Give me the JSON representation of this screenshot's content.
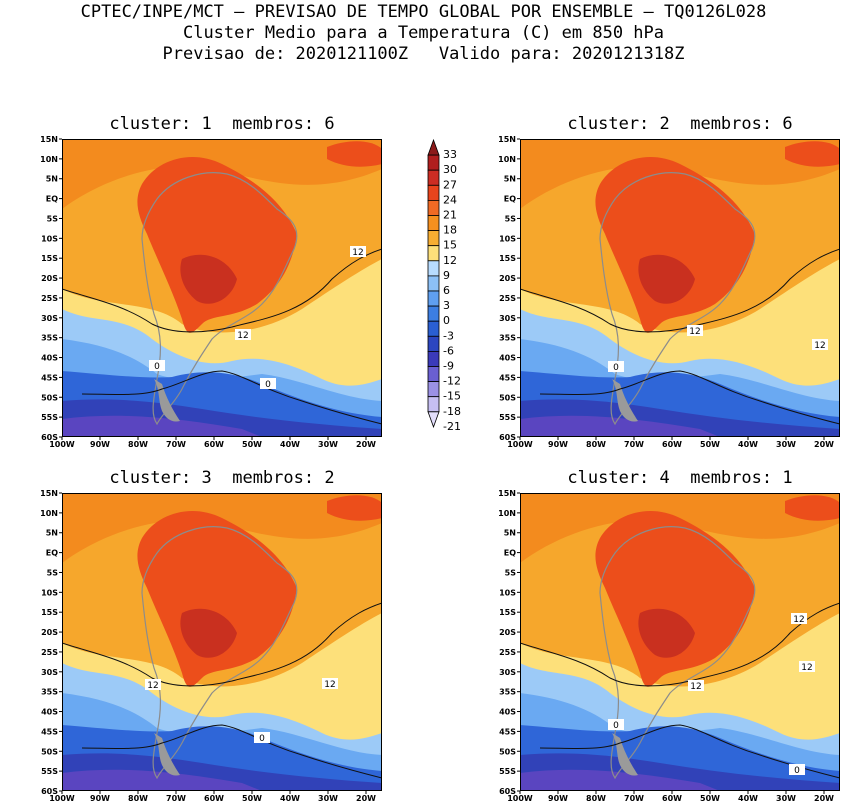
{
  "header": {
    "line1": "CPTEC/INPE/MCT – PREVISAO DE TEMPO GLOBAL POR ENSEMBLE – TQ0126L028",
    "line2": "Cluster Medio para a Temperatura (C) em 850 hPa",
    "line3": "Previsao de: 2020121100Z   Valido para: 2020121318Z"
  },
  "panels": [
    {
      "title": "cluster: 1  membros: 6",
      "contours": [
        "12",
        "12",
        "0",
        "0"
      ]
    },
    {
      "title": "cluster: 2  membros: 6",
      "contours": [
        "12",
        "12",
        "0"
      ]
    },
    {
      "title": "cluster: 3  membros: 2",
      "contours": [
        "12",
        "12",
        "0"
      ]
    },
    {
      "title": "cluster: 4  membros: 1",
      "contours": [
        "12",
        "12",
        "12",
        "0",
        "0"
      ]
    }
  ],
  "lat_labels": [
    "15N",
    "10N",
    "5N",
    "EQ",
    "5S",
    "10S",
    "15S",
    "20S",
    "25S",
    "30S",
    "35S",
    "40S",
    "45S",
    "50S",
    "55S",
    "60S"
  ],
  "lon_labels": [
    "100W",
    "90W",
    "80W",
    "70W",
    "60W",
    "50W",
    "40W",
    "30W",
    "20W"
  ],
  "colorbar": {
    "levels": [
      "33",
      "30",
      "27",
      "24",
      "21",
      "18",
      "15",
      "12",
      "9",
      "6",
      "3",
      "0",
      "-3",
      "-6",
      "-9",
      "-12",
      "-15",
      "-18",
      "-21"
    ],
    "colors": [
      "#8b1a1a",
      "#b01e1e",
      "#cc2d23",
      "#e8441c",
      "#f06a24",
      "#f5901f",
      "#f7ae32",
      "#fde07a",
      "#b8dcff",
      "#8cc0f7",
      "#5f9ff0",
      "#3c7ee2",
      "#2a5fd2",
      "#2c46c0",
      "#3b3aba",
      "#6a5fd2",
      "#9b91e5",
      "#c6bff2",
      "#e2ddfb"
    ]
  },
  "colors": {
    "hot_dark": "#c9301f",
    "hot": "#ec4e1b",
    "warm": "#f38b1e",
    "orange": "#f6a72c",
    "yellow": "#fde07a",
    "cool": "#6aa9f2",
    "cold": "#2f66d8",
    "colder": "#3142b8",
    "coldest": "#5a45c0"
  }
}
